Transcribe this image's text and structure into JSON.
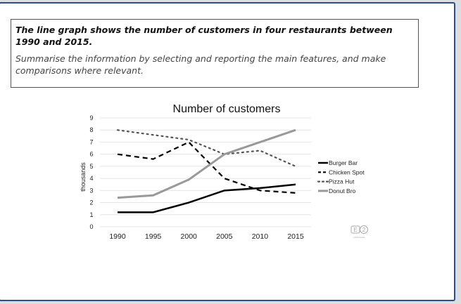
{
  "prompt": {
    "task": "The line graph shows the number of customers in four restaurants between 1990 and 2015.",
    "instruction": "Summarise the information by selecting and reporting the main features, and make comparisons where relevant."
  },
  "logo_text": "E2 LANGUAGE",
  "chart_data": {
    "type": "line",
    "title": "Number of customers",
    "xlabel": "",
    "ylabel": "thousands",
    "x": [
      "1990",
      "1995",
      "2000",
      "2005",
      "2010",
      "2015"
    ],
    "yticks": [
      "0",
      "1",
      "2",
      "3",
      "4",
      "5",
      "6",
      "7",
      "8",
      "9"
    ],
    "ylim": [
      0,
      9
    ],
    "grid": true,
    "legend_position": "right",
    "series": [
      {
        "name": "Burger Bar",
        "values": [
          1.2,
          1.2,
          2.0,
          3.0,
          3.2,
          3.5
        ],
        "color": "#000000",
        "style": "solid"
      },
      {
        "name": "Chicken Spot",
        "values": [
          6.0,
          5.6,
          7.0,
          4.0,
          3.0,
          2.8
        ],
        "color": "#000000",
        "style": "dashed"
      },
      {
        "name": "Pizza Hut",
        "values": [
          8.0,
          7.6,
          7.2,
          6.0,
          6.3,
          5.0
        ],
        "color": "#555555",
        "style": "dotted"
      },
      {
        "name": "Donut Bro",
        "values": [
          2.4,
          2.6,
          3.9,
          6.0,
          7.0,
          8.0
        ],
        "color": "#999999",
        "style": "solid"
      }
    ]
  }
}
